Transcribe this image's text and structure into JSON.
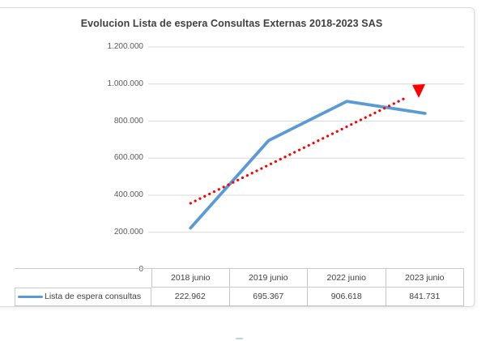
{
  "title": "Evolucion Lista de espera Consultas Externas 2018-2023 SAS",
  "chart_data": {
    "type": "line",
    "title": "Evolucion Lista de espera Consultas Externas 2018-2023 SAS",
    "categories": [
      "2018 junio",
      "2019 junio",
      "2022 junio",
      "2023 junio"
    ],
    "series": [
      {
        "name": "Lista de espera consultas",
        "values": [
          222962,
          695367,
          906618,
          841731
        ],
        "color": "#5B9BD5"
      }
    ],
    "value_labels": [
      "222.962",
      "695.367",
      "906.618",
      "841.731"
    ],
    "y_ticks": [
      "0",
      "200.000",
      "400.000",
      "600.000",
      "800.000",
      "1.000.000",
      "1.200.000"
    ],
    "y_tick_step": 200000,
    "ylim": [
      0,
      1200000
    ],
    "grid": true,
    "legend_position": "table-left",
    "trendline": {
      "color": "#FF0000",
      "style": "dotted",
      "arrow": true,
      "start_index": 0,
      "end_index": 2.92,
      "start_value": 356500,
      "end_value": 960000
    }
  },
  "colors": {
    "series_blue": "#5B9BD5",
    "trend_red": "#FF0000",
    "gridline": "#D9D9D9",
    "table_border": "#C9C9C9",
    "title_text": "#404040",
    "tick_text": "#595959"
  }
}
